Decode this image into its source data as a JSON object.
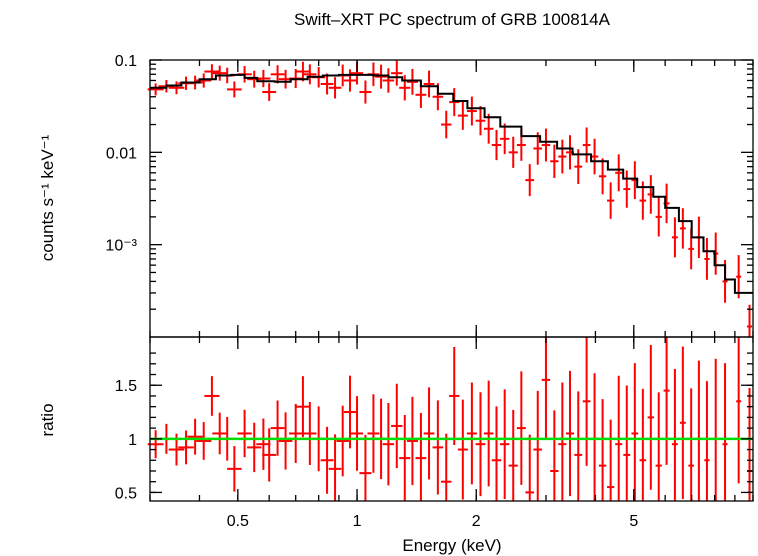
{
  "chart_data": {
    "type": "scatter",
    "title": "Swift–XRT PC spectrum of GRB 100814A",
    "xlabel": "Energy (keV)",
    "xscale": "log",
    "xlim": [
      0.3,
      10
    ],
    "x_ticks": [
      {
        "value": 0.5,
        "label": "0.5"
      },
      {
        "value": 1,
        "label": "1"
      },
      {
        "value": 2,
        "label": "2"
      },
      {
        "value": 5,
        "label": "5"
      }
    ],
    "colors": {
      "data": "#ff0000",
      "model": "#000000",
      "unity": "#00dd00"
    },
    "top_panel": {
      "ylabel": "counts s⁻¹ keV⁻¹",
      "yscale": "log",
      "ylim": [
        0.0001,
        0.1
      ],
      "y_ticks": [
        {
          "value": 0.1,
          "label": "0.1"
        },
        {
          "value": 0.01,
          "label": "0.01"
        },
        {
          "value": 0.001,
          "label": "10⁻³"
        }
      ],
      "model": {
        "energy": [
          0.3,
          0.33,
          0.36,
          0.4,
          0.44,
          0.48,
          0.52,
          0.56,
          0.62,
          0.68,
          0.75,
          0.82,
          0.9,
          1.0,
          1.1,
          1.2,
          1.3,
          1.45,
          1.6,
          1.75,
          1.9,
          2.1,
          2.3,
          2.6,
          2.9,
          3.2,
          3.5,
          3.9,
          4.3,
          4.7,
          5.1,
          5.6,
          6.0,
          6.5,
          7.0,
          7.5,
          8.0,
          8.5,
          9.0,
          10.0
        ],
        "counts": [
          0.05,
          0.053,
          0.057,
          0.062,
          0.068,
          0.069,
          0.064,
          0.059,
          0.058,
          0.062,
          0.066,
          0.068,
          0.069,
          0.069,
          0.068,
          0.065,
          0.06,
          0.052,
          0.043,
          0.036,
          0.03,
          0.024,
          0.019,
          0.015,
          0.013,
          0.011,
          0.0095,
          0.008,
          0.0065,
          0.0052,
          0.0042,
          0.0033,
          0.0025,
          0.0018,
          0.0012,
          0.00085,
          0.0006,
          0.00042,
          0.0003,
          0.0003
        ]
      },
      "points": [
        [
          0.31,
          0.048
        ],
        [
          0.33,
          0.052
        ],
        [
          0.35,
          0.05
        ],
        [
          0.37,
          0.056
        ],
        [
          0.39,
          0.057
        ],
        [
          0.41,
          0.06
        ],
        [
          0.43,
          0.075
        ],
        [
          0.45,
          0.072
        ],
        [
          0.47,
          0.068
        ],
        [
          0.49,
          0.048
        ],
        [
          0.52,
          0.07
        ],
        [
          0.55,
          0.062
        ],
        [
          0.58,
          0.063
        ],
        [
          0.6,
          0.045
        ],
        [
          0.63,
          0.07
        ],
        [
          0.66,
          0.062
        ],
        [
          0.7,
          0.063
        ],
        [
          0.73,
          0.075
        ],
        [
          0.76,
          0.07
        ],
        [
          0.8,
          0.065
        ],
        [
          0.84,
          0.055
        ],
        [
          0.88,
          0.05
        ],
        [
          0.92,
          0.068
        ],
        [
          0.96,
          0.06
        ],
        [
          1.0,
          0.072
        ],
        [
          1.05,
          0.045
        ],
        [
          1.1,
          0.07
        ],
        [
          1.15,
          0.066
        ],
        [
          1.2,
          0.06
        ],
        [
          1.26,
          0.072
        ],
        [
          1.32,
          0.05
        ],
        [
          1.38,
          0.058
        ],
        [
          1.45,
          0.042
        ],
        [
          1.52,
          0.055
        ],
        [
          1.6,
          0.04
        ],
        [
          1.68,
          0.02
        ],
        [
          1.76,
          0.035
        ],
        [
          1.85,
          0.025
        ],
        [
          1.95,
          0.028
        ],
        [
          2.05,
          0.022
        ],
        [
          2.15,
          0.018
        ],
        [
          2.25,
          0.012
        ],
        [
          2.36,
          0.014
        ],
        [
          2.48,
          0.01
        ],
        [
          2.6,
          0.012
        ],
        [
          2.73,
          0.005
        ],
        [
          2.86,
          0.011
        ],
        [
          3.0,
          0.012
        ],
        [
          3.15,
          0.008
        ],
        [
          3.3,
          0.009
        ],
        [
          3.45,
          0.01
        ],
        [
          3.62,
          0.007
        ],
        [
          3.8,
          0.012
        ],
        [
          3.98,
          0.009
        ],
        [
          4.17,
          0.0055
        ],
        [
          4.37,
          0.003
        ],
        [
          4.58,
          0.006
        ],
        [
          4.8,
          0.004
        ],
        [
          5.03,
          0.005
        ],
        [
          5.27,
          0.003
        ],
        [
          5.52,
          0.0035
        ],
        [
          5.78,
          0.002
        ],
        [
          6.05,
          0.0028
        ],
        [
          6.35,
          0.0012
        ],
        [
          6.65,
          0.0015
        ],
        [
          6.98,
          0.0009
        ],
        [
          7.3,
          0.0012
        ],
        [
          7.65,
          0.0007
        ],
        [
          8.05,
          0.0008
        ],
        [
          8.5,
          0.0004
        ],
        [
          9.2,
          0.00045
        ],
        [
          9.8,
          0.00013
        ]
      ]
    },
    "bottom_panel": {
      "ylabel": "ratio",
      "yscale": "linear",
      "ylim": [
        0.42,
        1.95
      ],
      "y_ticks": [
        {
          "value": 0.5,
          "label": "0.5"
        },
        {
          "value": 1,
          "label": "1"
        },
        {
          "value": 1.5,
          "label": "1.5"
        }
      ],
      "unity_line": 1,
      "points": [
        [
          0.31,
          0.95
        ],
        [
          0.33,
          1.0
        ],
        [
          0.35,
          0.9
        ],
        [
          0.37,
          0.92
        ],
        [
          0.39,
          1.02
        ],
        [
          0.41,
          0.98
        ],
        [
          0.43,
          1.4
        ],
        [
          0.45,
          1.05
        ],
        [
          0.47,
          1.0
        ],
        [
          0.49,
          0.72
        ],
        [
          0.52,
          1.05
        ],
        [
          0.55,
          0.92
        ],
        [
          0.58,
          0.95
        ],
        [
          0.6,
          0.85
        ],
        [
          0.63,
          1.1
        ],
        [
          0.66,
          0.98
        ],
        [
          0.7,
          1.05
        ],
        [
          0.73,
          1.3
        ],
        [
          0.76,
          1.05
        ],
        [
          0.8,
          1.0
        ],
        [
          0.84,
          0.8
        ],
        [
          0.88,
          0.72
        ],
        [
          0.92,
          0.98
        ],
        [
          0.96,
          1.25
        ],
        [
          1.0,
          1.05
        ],
        [
          1.05,
          0.68
        ],
        [
          1.1,
          1.05
        ],
        [
          1.15,
          1.0
        ],
        [
          1.2,
          0.95
        ],
        [
          1.26,
          1.12
        ],
        [
          1.32,
          0.82
        ],
        [
          1.38,
          0.98
        ],
        [
          1.45,
          0.82
        ],
        [
          1.52,
          1.05
        ],
        [
          1.6,
          0.92
        ],
        [
          1.68,
          0.6
        ],
        [
          1.76,
          1.4
        ],
        [
          1.85,
          0.9
        ],
        [
          1.95,
          1.05
        ],
        [
          2.05,
          0.95
        ],
        [
          2.15,
          1.05
        ],
        [
          2.25,
          0.8
        ],
        [
          2.36,
          0.95
        ],
        [
          2.48,
          0.75
        ],
        [
          2.6,
          1.1
        ],
        [
          2.73,
          0.5
        ],
        [
          2.86,
          0.9
        ],
        [
          3.0,
          1.55
        ],
        [
          3.15,
          0.7
        ],
        [
          3.3,
          0.95
        ],
        [
          3.45,
          1.05
        ],
        [
          3.62,
          0.85
        ],
        [
          3.8,
          1.35
        ],
        [
          3.98,
          1.0
        ],
        [
          4.17,
          0.75
        ],
        [
          4.37,
          0.55
        ],
        [
          4.58,
          0.95
        ],
        [
          4.8,
          0.85
        ],
        [
          5.03,
          1.05
        ],
        [
          5.27,
          0.8
        ],
        [
          5.52,
          1.2
        ],
        [
          5.78,
          0.75
        ],
        [
          6.05,
          1.45
        ],
        [
          6.35,
          0.95
        ],
        [
          6.65,
          1.15
        ],
        [
          6.98,
          0.75
        ],
        [
          7.3,
          1.0
        ],
        [
          7.65,
          0.8
        ],
        [
          8.05,
          1.0
        ],
        [
          8.5,
          0.95
        ],
        [
          9.2,
          1.35
        ],
        [
          9.8,
          0.7
        ]
      ]
    }
  }
}
